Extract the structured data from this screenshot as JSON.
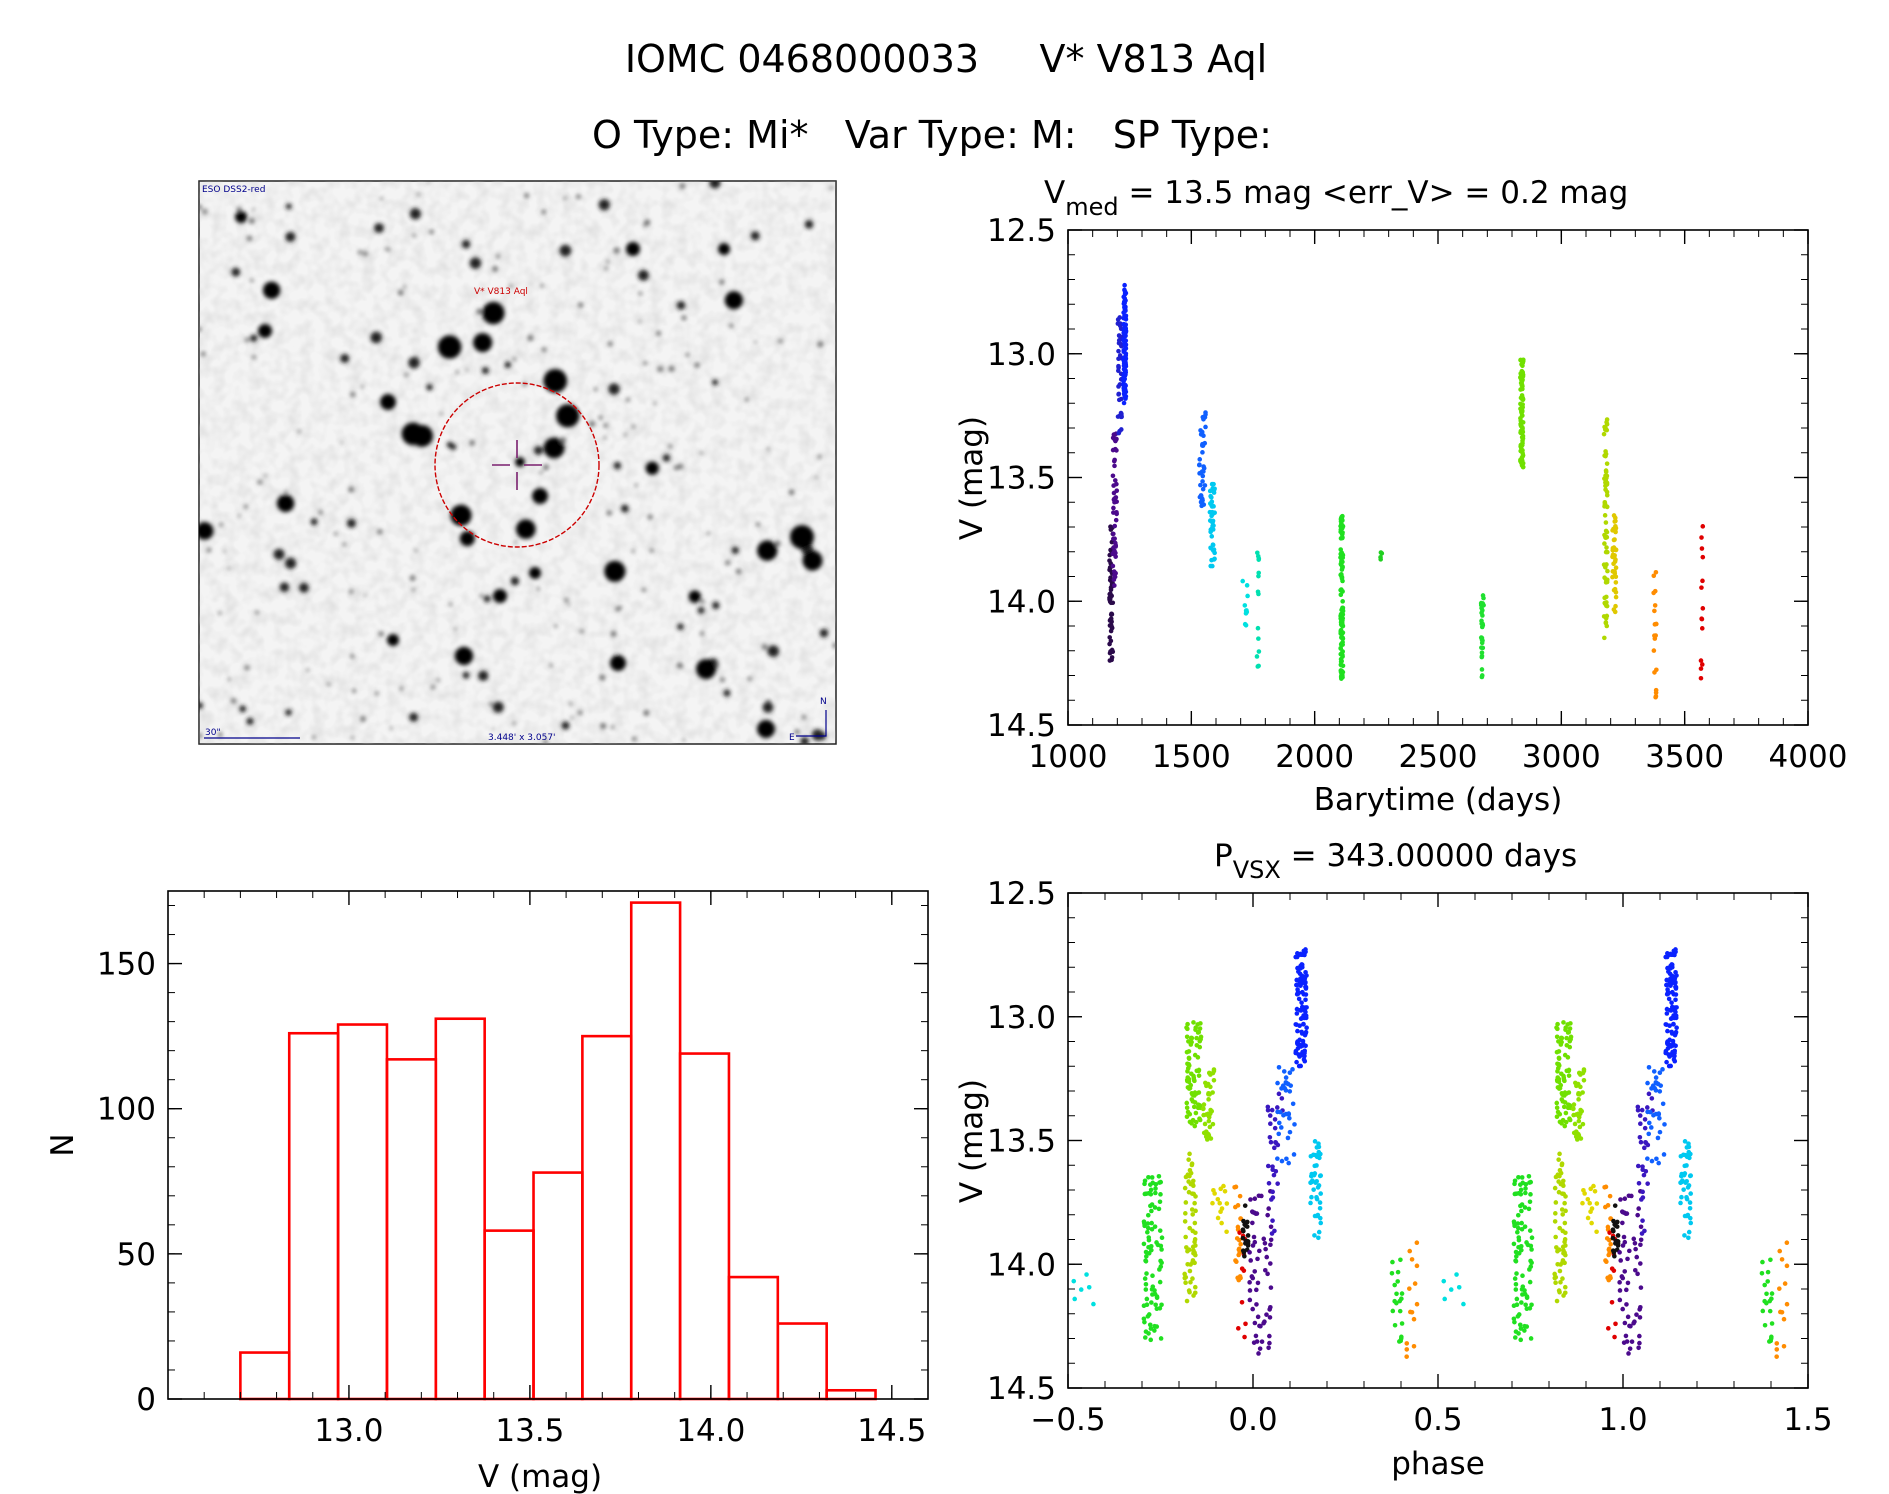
{
  "header": {
    "title": "IOMC 0468000033     V* V813 Aql",
    "subtitle": "O Type: Mi*   Var Type: M:   SP Type:"
  },
  "sky_image": {
    "survey_label": "ESO DSS2-red",
    "object_label": "V* V813 Aql",
    "scale_label": "30\"",
    "fov_label": "3.448' x 3.057'",
    "north_label": "N",
    "east_label": "E"
  },
  "colors": {
    "histogram": "#ff0000",
    "marker_circle": "#cc0000",
    "crosshair": "#7a1f6e",
    "sky_text": "#00008b"
  },
  "chart_data": [
    {
      "id": "lightcurve",
      "type": "scatter",
      "title_prefix": "V",
      "title_sub": "med",
      "title_rest": " = 13.5 mag <err_V> = 0.2 mag",
      "xlabel": "Barytime (days)",
      "ylabel": "V (mag)",
      "xlim": [
        1000,
        4000
      ],
      "ylim": [
        12.5,
        14.5
      ],
      "y_inverted": true,
      "xticks": [
        1000,
        1500,
        2000,
        2500,
        3000,
        3500,
        4000
      ],
      "xtick_labels": [
        "1000",
        "1500",
        "2000",
        "2500",
        "3000",
        "3500",
        "4000"
      ],
      "yticks": [
        12.5,
        13.0,
        13.5,
        14.0,
        14.5
      ],
      "ytick_labels": [
        "12.5",
        "13.0",
        "13.5",
        "14.0",
        "14.5"
      ],
      "clusters": [
        {
          "x": 1175,
          "ymin": 13.68,
          "ymax": 14.25,
          "n": 60,
          "color": "#2a0a4a",
          "xw": 14
        },
        {
          "x": 1190,
          "ymin": 13.3,
          "ymax": 13.95,
          "n": 50,
          "color": "#4b0a8c",
          "xw": 16
        },
        {
          "x": 1210,
          "ymin": 12.85,
          "ymax": 13.35,
          "n": 40,
          "color": "#2020d0",
          "xw": 16
        },
        {
          "x": 1230,
          "ymin": 12.72,
          "ymax": 13.2,
          "n": 110,
          "color": "#0a22ff",
          "xw": 10
        },
        {
          "x": 1545,
          "ymin": 13.22,
          "ymax": 13.62,
          "n": 40,
          "color": "#1060ff",
          "xw": 26
        },
        {
          "x": 1585,
          "ymin": 13.52,
          "ymax": 13.88,
          "n": 45,
          "color": "#00c8f0",
          "xw": 20
        },
        {
          "x": 1720,
          "ymin": 13.9,
          "ymax": 14.1,
          "n": 10,
          "color": "#00e0e0",
          "xw": 24
        },
        {
          "x": 1770,
          "ymin": 13.78,
          "ymax": 14.3,
          "n": 14,
          "color": "#00e0b0",
          "xw": 8
        },
        {
          "x": 2110,
          "ymin": 13.65,
          "ymax": 14.32,
          "n": 120,
          "color": "#20e020",
          "xw": 10
        },
        {
          "x": 2270,
          "ymin": 13.8,
          "ymax": 13.86,
          "n": 4,
          "color": "#20d020",
          "xw": 6
        },
        {
          "x": 2680,
          "ymin": 13.97,
          "ymax": 14.32,
          "n": 30,
          "color": "#20e030",
          "xw": 10
        },
        {
          "x": 2840,
          "ymin": 13.02,
          "ymax": 13.48,
          "n": 100,
          "color": "#70e000",
          "xw": 12
        },
        {
          "x": 3180,
          "ymin": 13.25,
          "ymax": 14.18,
          "n": 70,
          "color": "#b0d800",
          "xw": 14
        },
        {
          "x": 3215,
          "ymin": 13.65,
          "ymax": 14.07,
          "n": 45,
          "color": "#e0c800",
          "xw": 16
        },
        {
          "x": 3380,
          "ymin": 13.88,
          "ymax": 14.4,
          "n": 18,
          "color": "#ff8c00",
          "xw": 12
        },
        {
          "x": 3570,
          "ymin": 13.68,
          "ymax": 14.32,
          "n": 14,
          "color": "#e00000",
          "xw": 8
        }
      ]
    },
    {
      "id": "histogram",
      "type": "bar",
      "xlabel": "V (mag)",
      "ylabel": "N",
      "xlim": [
        12.5,
        14.6
      ],
      "ylim": [
        0,
        175
      ],
      "bin_edges": [
        12.7,
        12.835,
        12.97,
        13.105,
        13.24,
        13.375,
        13.51,
        13.645,
        13.78,
        13.915,
        14.05,
        14.185,
        14.32,
        14.455
      ],
      "counts": [
        16,
        126,
        129,
        117,
        131,
        58,
        78,
        125,
        171,
        119,
        42,
        26,
        3
      ],
      "xticks": [
        13.0,
        13.5,
        14.0,
        14.5
      ],
      "xtick_labels": [
        "13.0",
        "13.5",
        "14.0",
        "14.5"
      ],
      "yticks": [
        0,
        50,
        100,
        150
      ],
      "ytick_labels": [
        "0",
        "50",
        "100",
        "150"
      ]
    },
    {
      "id": "phased",
      "type": "scatter",
      "title_prefix": "P",
      "title_sub": "VSX",
      "title_rest": " = 343.00000 days",
      "xlabel": "phase",
      "ylabel": "V (mag)",
      "xlim": [
        -0.5,
        1.5
      ],
      "ylim": [
        12.5,
        14.5
      ],
      "y_inverted": true,
      "xticks": [
        -0.5,
        0.0,
        0.5,
        1.0,
        1.5
      ],
      "xtick_labels": [
        "−0.5",
        "0.0",
        "0.5",
        "1.0",
        "1.5"
      ],
      "yticks": [
        12.5,
        13.0,
        13.5,
        14.0,
        14.5
      ],
      "ytick_labels": [
        "12.5",
        "13.0",
        "13.5",
        "14.0",
        "14.5"
      ],
      "period_days": 343.0,
      "clusters": [
        {
          "x": -0.45,
          "ymin": 13.95,
          "ymax": 14.17,
          "n": 6,
          "color": "#00e0e0",
          "xw": 0.07
        },
        {
          "x": -0.27,
          "ymin": 13.62,
          "ymax": 14.32,
          "n": 90,
          "color": "#20e020",
          "xw": 0.05
        },
        {
          "x": -0.16,
          "ymin": 13.02,
          "ymax": 13.45,
          "n": 80,
          "color": "#70e000",
          "xw": 0.04
        },
        {
          "x": -0.17,
          "ymin": 13.55,
          "ymax": 14.15,
          "n": 60,
          "color": "#b0d800",
          "xw": 0.03
        },
        {
          "x": -0.12,
          "ymin": 13.2,
          "ymax": 13.5,
          "n": 40,
          "color": "#90e000",
          "xw": 0.03
        },
        {
          "x": -0.09,
          "ymin": 13.68,
          "ymax": 13.9,
          "n": 14,
          "color": "#e0d800",
          "xw": 0.04
        },
        {
          "x": -0.04,
          "ymin": 13.65,
          "ymax": 14.07,
          "n": 22,
          "color": "#ff8c00",
          "xw": 0.02
        },
        {
          "x": -0.03,
          "ymin": 13.85,
          "ymax": 14.33,
          "n": 10,
          "color": "#e00000",
          "xw": 0.02
        },
        {
          "x": -0.02,
          "ymin": 13.76,
          "ymax": 13.98,
          "n": 20,
          "color": "#111111",
          "xw": 0.015
        },
        {
          "x": 0.02,
          "ymin": 13.7,
          "ymax": 14.38,
          "n": 60,
          "color": "#4b0a8c",
          "xw": 0.06
        },
        {
          "x": 0.06,
          "ymin": 13.3,
          "ymax": 13.9,
          "n": 30,
          "color": "#3a18c0",
          "xw": 0.04
        },
        {
          "x": 0.09,
          "ymin": 13.2,
          "ymax": 13.62,
          "n": 35,
          "color": "#1060ff",
          "xw": 0.05
        },
        {
          "x": 0.13,
          "ymin": 12.72,
          "ymax": 13.2,
          "n": 110,
          "color": "#0a22ff",
          "xw": 0.03
        },
        {
          "x": 0.17,
          "ymin": 13.5,
          "ymax": 13.92,
          "n": 45,
          "color": "#00c8f0",
          "xw": 0.03
        },
        {
          "x": 0.39,
          "ymin": 13.98,
          "ymax": 14.32,
          "n": 20,
          "color": "#20e020",
          "xw": 0.03
        },
        {
          "x": 0.43,
          "ymin": 13.9,
          "ymax": 14.38,
          "n": 14,
          "color": "#ff8c00",
          "xw": 0.03
        }
      ]
    }
  ]
}
